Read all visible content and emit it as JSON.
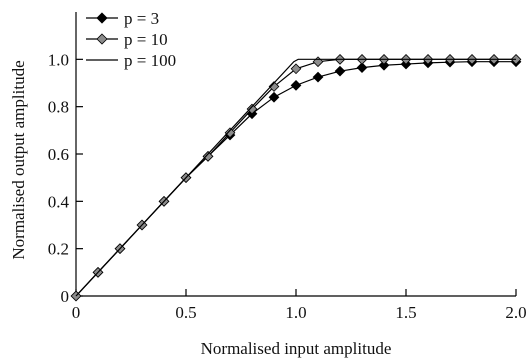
{
  "chart_data": {
    "type": "line",
    "xlabel": "Normalised input amplitude",
    "ylabel": "Normalised output amplitude",
    "xlim": [
      0,
      2.0
    ],
    "ylim": [
      0,
      1.2
    ],
    "x_ticks": [
      "0",
      "0.5",
      "1.0",
      "1.5",
      "2.0"
    ],
    "x_tick_values": [
      0,
      0.5,
      1.0,
      1.5,
      2.0
    ],
    "y_ticks": [
      "0",
      "0.2",
      "0.4",
      "0.6",
      "0.8",
      "1.0"
    ],
    "y_tick_values": [
      0,
      0.2,
      0.4,
      0.6,
      0.8,
      1.0
    ],
    "grid": false,
    "legend_position": "top-left",
    "series": [
      {
        "name": "p = 3",
        "marker": "diamond-black",
        "color": "#000000",
        "x": [
          0,
          0.1,
          0.2,
          0.3,
          0.4,
          0.5,
          0.6,
          0.7,
          0.8,
          0.9,
          1.0,
          1.1,
          1.2,
          1.3,
          1.4,
          1.5,
          1.6,
          1.7,
          1.8,
          1.9,
          2.0
        ],
        "y": [
          0,
          0.1,
          0.2,
          0.3,
          0.4,
          0.5,
          0.59,
          0.68,
          0.77,
          0.84,
          0.89,
          0.925,
          0.95,
          0.965,
          0.975,
          0.98,
          0.985,
          0.988,
          0.99,
          0.99,
          0.99
        ]
      },
      {
        "name": "p = 10",
        "marker": "diamond-grey",
        "color": "#888888",
        "x": [
          0,
          0.1,
          0.2,
          0.3,
          0.4,
          0.5,
          0.6,
          0.7,
          0.8,
          0.9,
          1.0,
          1.1,
          1.2,
          1.3,
          1.4,
          1.5,
          1.6,
          1.7,
          1.8,
          1.9,
          2.0
        ],
        "y": [
          0,
          0.1,
          0.2,
          0.3,
          0.4,
          0.5,
          0.59,
          0.69,
          0.79,
          0.885,
          0.96,
          0.99,
          1.0,
          1.0,
          1.0,
          1.0,
          1.0,
          1.0,
          1.0,
          1.0,
          1.0
        ]
      },
      {
        "name": "p = 100",
        "marker": "none",
        "color": "#000000",
        "x": [
          0,
          0.5,
          0.99,
          1.0,
          1.01,
          2.0
        ],
        "y": [
          0,
          0.5,
          0.99,
          0.995,
          1.0,
          1.0
        ]
      }
    ]
  }
}
